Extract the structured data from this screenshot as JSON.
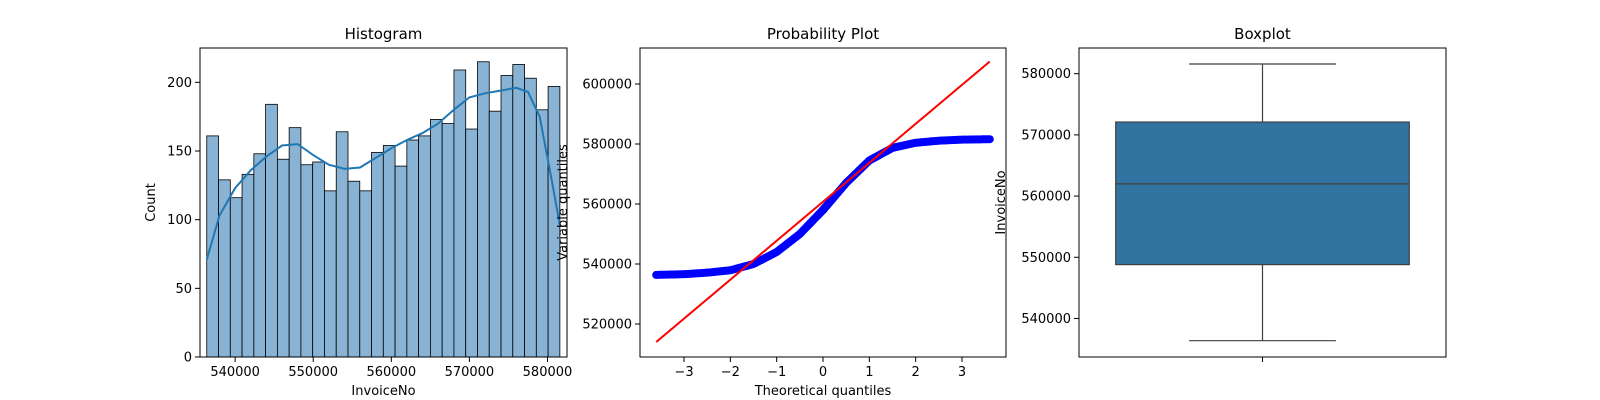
{
  "chart_data": [
    {
      "type": "bar",
      "title": "Histogram",
      "xlabel": "InvoiceNo",
      "ylabel": "Count",
      "xlim": [
        535500,
        582500
      ],
      "ylim": [
        0,
        225
      ],
      "xticks": [
        540000,
        550000,
        560000,
        570000,
        580000
      ],
      "xtick_labels": [
        "540000",
        "550000",
        "560000",
        "570000",
        "580000"
      ],
      "yticks": [
        0,
        50,
        100,
        150,
        200
      ],
      "ytick_labels": [
        "0",
        "50",
        "100",
        "150",
        "200"
      ],
      "bin_start": 536365,
      "bin_end": 581587,
      "counts": [
        161,
        129,
        116,
        133,
        148,
        184,
        144,
        167,
        140,
        142,
        121,
        164,
        128,
        121,
        149,
        154,
        139,
        158,
        161,
        173,
        170,
        209,
        166,
        215,
        179,
        205,
        213,
        203,
        180,
        197
      ],
      "bar_color": "#83afd2",
      "kde": {
        "x": [
          536365,
          538000,
          540000,
          542000,
          544000,
          546000,
          548000,
          550000,
          552000,
          554000,
          556000,
          558000,
          560000,
          562000,
          564000,
          566000,
          568000,
          570000,
          572000,
          574000,
          576000,
          577500,
          579000,
          580500,
          581587
        ],
        "y": [
          71,
          103,
          123,
          136,
          146,
          154,
          155,
          147,
          140,
          137,
          138,
          145,
          152,
          158,
          163,
          170,
          180,
          189,
          192,
          194,
          196,
          193,
          175,
          130,
          96
        ],
        "color": "#1f77b4"
      }
    },
    {
      "type": "scatter",
      "title": "Probability Plot",
      "xlabel": "Theoretical quantiles",
      "ylabel": "Variable quantiles",
      "xlim": [
        -3.95,
        3.95
      ],
      "ylim": [
        509000,
        612000
      ],
      "xticks": [
        -3,
        -2,
        -1,
        0,
        1,
        2,
        3
      ],
      "xtick_labels": [
        "−3",
        "−2",
        "−1",
        "0",
        "1",
        "2",
        "3"
      ],
      "yticks": [
        520000,
        540000,
        560000,
        580000,
        600000
      ],
      "ytick_labels": [
        "520000",
        "540000",
        "560000",
        "580000",
        "600000"
      ],
      "sample_quantile_curve": {
        "x": [
          -3.6,
          -3.0,
          -2.5,
          -2.0,
          -1.5,
          -1.0,
          -0.5,
          0.0,
          0.5,
          1.0,
          1.5,
          2.0,
          2.5,
          3.0,
          3.2,
          3.6
        ],
        "y": [
          536365,
          536600,
          537100,
          537900,
          540000,
          544000,
          550000,
          558000,
          567000,
          574500,
          578700,
          580400,
          581100,
          581450,
          581500,
          581587
        ]
      },
      "fit_line": {
        "x": [
          -3.6,
          3.6
        ],
        "y": [
          514000,
          607500
        ],
        "color": "#ff0000"
      },
      "point_color": "#0000ff"
    },
    {
      "type": "box",
      "title": "Boxplot",
      "xlabel": "",
      "ylabel": "InvoiceNo",
      "ylim": [
        533700,
        584200
      ],
      "yticks": [
        540000,
        550000,
        560000,
        570000,
        580000
      ],
      "ytick_labels": [
        "540000",
        "550000",
        "560000",
        "570000",
        "580000"
      ],
      "whisker_low": 536365,
      "q1": 548800,
      "median": 562000,
      "q3": 572100,
      "whisker_high": 581587,
      "box_color": "#3274a1"
    }
  ]
}
